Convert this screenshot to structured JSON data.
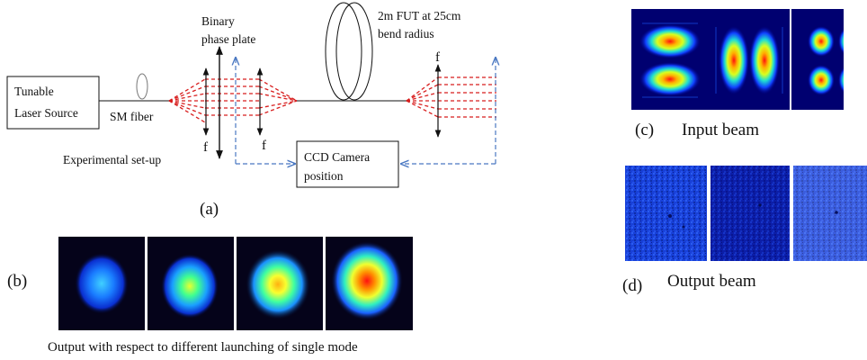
{
  "setup": {
    "laser_source_lines": [
      "Tunable",
      "Laser Source"
    ],
    "sm_fiber_label": "SM fiber",
    "phase_plate_lines": [
      "Binary",
      "phase plate"
    ],
    "fut_lines": [
      "2m FUT at 25cm",
      "bend radius"
    ],
    "focal_label": "f",
    "caption": "Experimental set-up",
    "ccd_lines": [
      "CCD Camera",
      "position"
    ],
    "panel_label": "(a)"
  },
  "panel_b": {
    "label": "(b)",
    "caption": "Output with respect to different launching of single mode",
    "spot_count": 4
  },
  "panel_c": {
    "label": "(c)",
    "caption": "Input beam",
    "mode_patterns": [
      "two-lobe horizontal",
      "two-lobe vertical",
      "four-lobe"
    ]
  },
  "panel_d": {
    "label": "(d)",
    "caption": "Output beam",
    "tile_count": 3
  },
  "colors": {
    "beam_red": "#d81e1e",
    "feedback_blue": "#4a78c2",
    "background_dark": "#05031a"
  }
}
